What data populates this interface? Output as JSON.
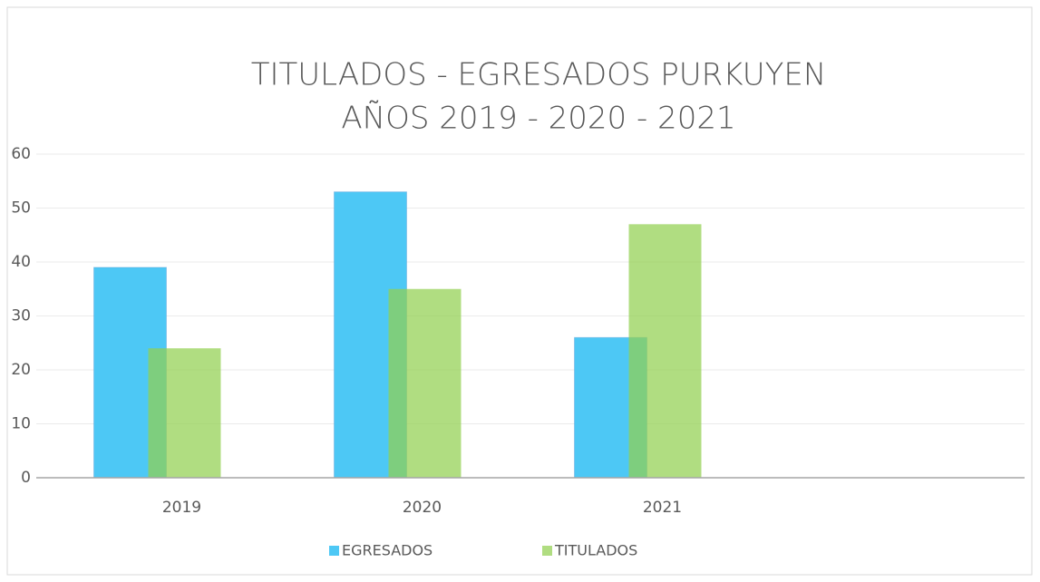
{
  "chart_data": {
    "type": "bar",
    "title": "TITULADOS - EGRESADOS PURKUYEN",
    "subtitle": "AÑOS 2019 - 2020 - 2021",
    "categories": [
      "2019",
      "2020",
      "2021",
      null
    ],
    "series": [
      {
        "name": "EGRESADOS",
        "color": "#4dc8f5",
        "values": [
          39,
          53,
          26,
          null
        ]
      },
      {
        "name": "TITULADOS",
        "color": "#92d050",
        "values": [
          24,
          35,
          47,
          null
        ]
      }
    ],
    "ylim": [
      0,
      60
    ],
    "yticks": [
      0,
      10,
      20,
      30,
      40,
      50,
      60
    ],
    "grid": true,
    "legend": "bottom"
  }
}
